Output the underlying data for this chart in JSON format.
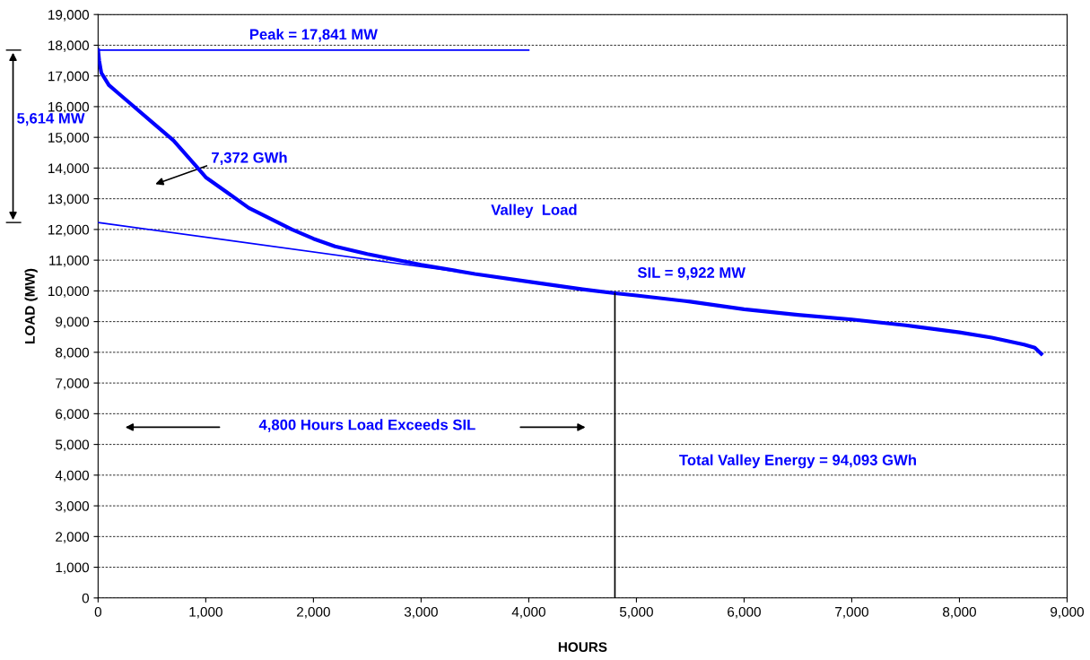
{
  "chart_data": {
    "type": "line",
    "xlabel": "HOURS",
    "ylabel": "LOAD (MW)",
    "xlim": [
      0,
      9000
    ],
    "ylim": [
      0,
      19000
    ],
    "xticks": [
      0,
      {
        "value": 1000,
        "label": "1,000"
      },
      {
        "value": 2000,
        "label": "2,000"
      },
      {
        "value": 3000,
        "label": "3,000"
      },
      {
        "value": 4000,
        "label": "4,000"
      },
      {
        "value": 5000,
        "label": "5,000"
      },
      {
        "value": 6000,
        "label": "6,000"
      },
      {
        "value": 7000,
        "label": "7,000"
      },
      {
        "value": 8000,
        "label": "8,000"
      },
      {
        "value": 9000,
        "label": "9,000"
      }
    ],
    "yticks": [
      0,
      {
        "value": 1000,
        "label": "1,000"
      },
      {
        "value": 2000,
        "label": "2,000"
      },
      {
        "value": 3000,
        "label": "3,000"
      },
      {
        "value": 4000,
        "label": "4,000"
      },
      {
        "value": 5000,
        "label": "5,000"
      },
      {
        "value": 6000,
        "label": "6,000"
      },
      {
        "value": 7000,
        "label": "7,000"
      },
      {
        "value": 8000,
        "label": "8,000"
      },
      {
        "value": 9000,
        "label": "9,000"
      },
      {
        "value": 10000,
        "label": "10,000"
      },
      {
        "value": 11000,
        "label": "11,000"
      },
      {
        "value": 12000,
        "label": "12,000"
      },
      {
        "value": 13000,
        "label": "13,000"
      },
      {
        "value": 14000,
        "label": "14,000"
      },
      {
        "value": 15000,
        "label": "15,000"
      },
      {
        "value": 16000,
        "label": "16,000"
      },
      {
        "value": 17000,
        "label": "17,000"
      },
      {
        "value": 18000,
        "label": "18,000"
      },
      {
        "value": 19000,
        "label": "19,000"
      }
    ],
    "grid": "y",
    "marker": "none",
    "line_style": "solid",
    "series": [
      {
        "color": "#0000ff",
        "x": [
          0,
          10,
          30,
          100,
          200,
          300,
          500,
          700,
          900,
          1000,
          1200,
          1400,
          1600,
          1800,
          2000,
          2200,
          2500,
          3000,
          3500,
          4000,
          4500,
          4800,
          5000,
          5500,
          6000,
          6500,
          7000,
          7500,
          8000,
          8300,
          8600,
          8700,
          8760
        ],
        "values": [
          17841,
          17500,
          17100,
          16700,
          16400,
          16100,
          15500,
          14900,
          14100,
          13700,
          13200,
          12700,
          12350,
          12000,
          11700,
          11450,
          11200,
          10850,
          10550,
          10300,
          10050,
          9922,
          9850,
          9650,
          9400,
          9220,
          9070,
          8880,
          8650,
          8480,
          8250,
          8150,
          7950
        ]
      },
      {
        "color": "#0000ff",
        "x": [
          0,
          4000
        ],
        "values": [
          17841,
          17841
        ]
      },
      {
        "color": "#0000ff",
        "x": [
          0,
          4800
        ],
        "values": [
          12227,
          9922
        ]
      },
      {
        "color": "#000000",
        "x": [
          4800,
          4800
        ],
        "values": [
          0,
          9922
        ]
      }
    ],
    "annotations": [
      {
        "text": "Peak = 17,841 MW",
        "x": 2000,
        "y": 17841
      },
      {
        "text": "SIL = 9,922 MW",
        "x": 4800,
        "y": 9922
      },
      "5,614 MW",
      "7,372 GWh",
      "Valley  Load",
      "4,800 Hours Load Exceeds SIL",
      "Total Valley Energy = 94,093 GWh"
    ]
  }
}
